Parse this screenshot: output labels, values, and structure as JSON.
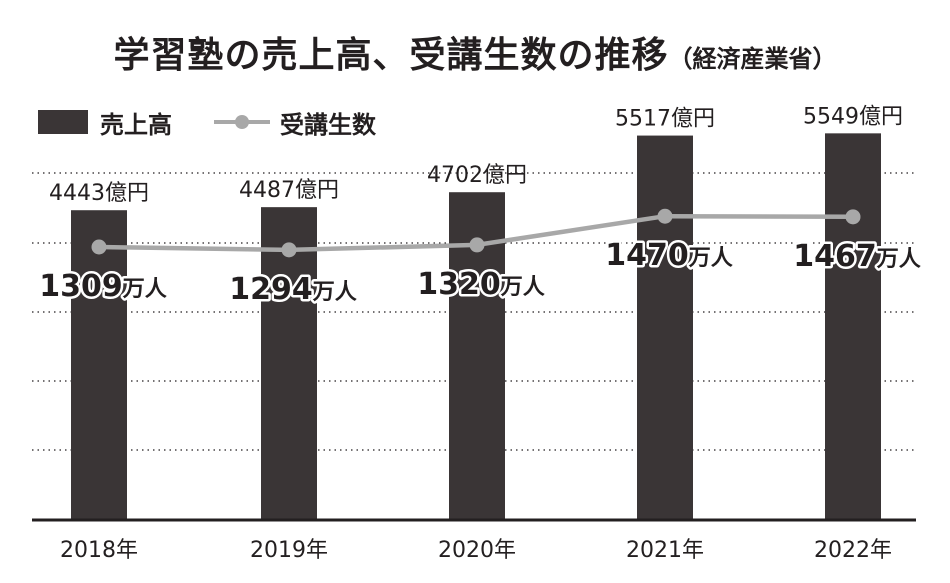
{
  "title": "学習塾の売上高、受講生数の推移",
  "source": "（経済産業省）",
  "chart_data": {
    "type": "bar",
    "categories": [
      "2018年",
      "2019年",
      "2020年",
      "2021年",
      "2022年"
    ],
    "series": [
      {
        "name": "売上高",
        "type": "bar",
        "values": [
          4443,
          4487,
          4702,
          5517,
          5549
        ],
        "unit": "億円",
        "color": "#3a3536"
      },
      {
        "name": "受講生数",
        "type": "line",
        "values": [
          1309,
          1294,
          1320,
          1470,
          1467
        ],
        "unit": "万人",
        "color": "#a8a8a8"
      }
    ],
    "grid": true,
    "legend": "top-left"
  }
}
